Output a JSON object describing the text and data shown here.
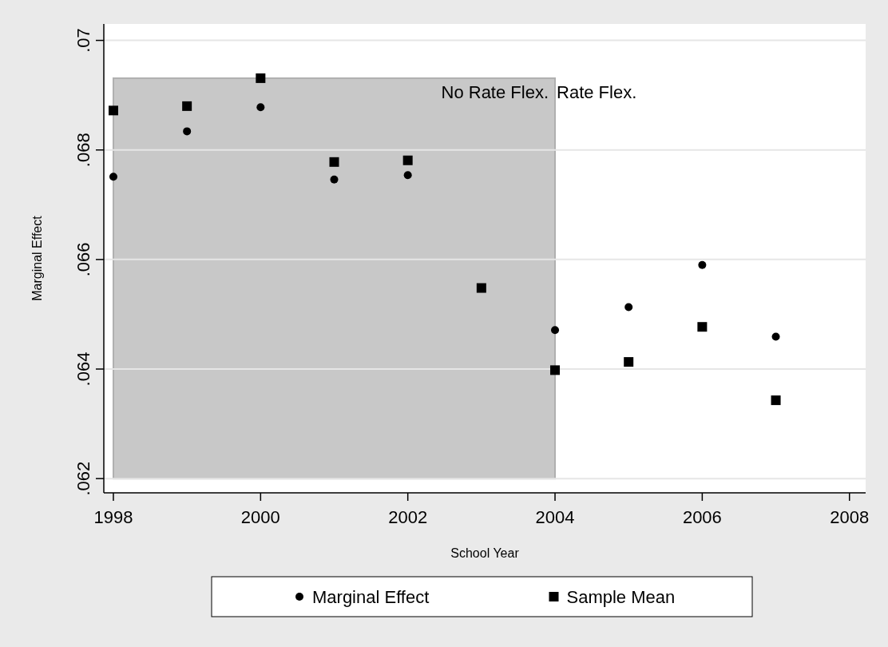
{
  "chart_data": {
    "type": "scatter",
    "xlabel": "School Year",
    "ylabel": "Marginal Effect",
    "xlim": [
      1997.87,
      2008.22
    ],
    "xticks": [
      1998,
      2000,
      2002,
      2004,
      2006,
      2008
    ],
    "ylim": [
      0.06174,
      0.0703
    ],
    "yticks": [
      {
        "value": 0.062,
        "label": ".062"
      },
      {
        "value": 0.064,
        "label": ".064"
      },
      {
        "value": 0.066,
        "label": ".066"
      },
      {
        "value": 0.068,
        "label": ".068"
      },
      {
        "value": 0.07,
        "label": ".07"
      }
    ],
    "x": [
      1998,
      1999,
      2000,
      2001,
      2002,
      2003,
      2004,
      2005,
      2006,
      2007
    ],
    "series": [
      {
        "name": "Marginal Effect",
        "color": "#000000",
        "marker": "circle",
        "values": [
          0.06751,
          0.06834,
          0.06878,
          0.06746,
          0.06754,
          null,
          0.06471,
          0.06513,
          0.0659,
          0.06459
        ]
      },
      {
        "name": "Sample Mean",
        "color": "#000000",
        "marker": "square",
        "values": [
          0.06872,
          0.0688,
          0.06931,
          0.06778,
          0.06781,
          0.06548,
          0.06398,
          0.06413,
          0.06477,
          0.06343
        ]
      }
    ],
    "bands": [
      {
        "axis": "x",
        "from": 1998,
        "to": 2004,
        "color": "#c8c8c8",
        "label": "No Rate Flex."
      }
    ],
    "annotations": [
      "Rate Flex."
    ],
    "grid": "y",
    "legend": "bottom"
  }
}
